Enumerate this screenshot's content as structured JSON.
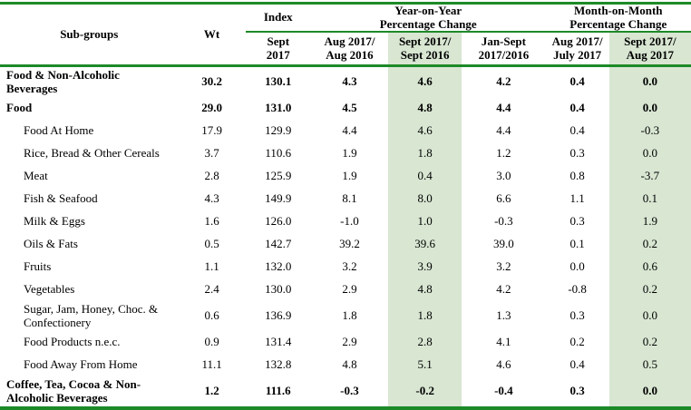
{
  "table": {
    "columns": {
      "subgroups": "Sub-groups",
      "wt": "Wt",
      "index_group": "Index",
      "index_sub": "Sept\n2017",
      "yoy_group": "Year-on-Year\nPercentage Change",
      "yoy_subs": [
        "Aug 2017/\nAug 2016",
        "Sept 2017/\nSept 2016",
        "Jan-Sept\n2017/2016"
      ],
      "mom_group": "Month-on-Month\nPercentage Change",
      "mom_subs": [
        "Aug 2017/\nJuly 2017",
        "Sept 2017/\nAug 2017"
      ]
    },
    "highlight_value_indices": [
      3,
      6
    ],
    "colors": {
      "line_green": "#1d8a28",
      "highlight_green": "#d8e6d2"
    },
    "rows": [
      {
        "label": "Food & Non-Alcoholic\nBeverages",
        "bold": true,
        "indent": false,
        "twoLine": true,
        "values": [
          "30.2",
          "130.1",
          "4.3",
          "4.6",
          "4.2",
          "0.4",
          "0.0"
        ]
      },
      {
        "label": "Food",
        "bold": true,
        "indent": false,
        "twoLine": false,
        "values": [
          "29.0",
          "131.0",
          "4.5",
          "4.8",
          "4.4",
          "0.4",
          "0.0"
        ]
      },
      {
        "label": "Food At Home",
        "bold": false,
        "indent": true,
        "twoLine": false,
        "values": [
          "17.9",
          "129.9",
          "4.4",
          "4.6",
          "4.4",
          "0.4",
          "-0.3"
        ]
      },
      {
        "label": "Rice, Bread & Other Cereals",
        "bold": false,
        "indent": true,
        "twoLine": false,
        "values": [
          "3.7",
          "110.6",
          "1.9",
          "1.8",
          "1.2",
          "0.3",
          "0.0"
        ]
      },
      {
        "label": "Meat",
        "bold": false,
        "indent": true,
        "twoLine": false,
        "values": [
          "2.8",
          "125.9",
          "1.9",
          "0.4",
          "3.0",
          "0.8",
          "-3.7"
        ]
      },
      {
        "label": "Fish & Seafood",
        "bold": false,
        "indent": true,
        "twoLine": false,
        "values": [
          "4.3",
          "149.9",
          "8.1",
          "8.0",
          "6.6",
          "1.1",
          "0.1"
        ]
      },
      {
        "label": "Milk & Eggs",
        "bold": false,
        "indent": true,
        "twoLine": false,
        "values": [
          "1.6",
          "126.0",
          "-1.0",
          "1.0",
          "-0.3",
          "0.3",
          "1.9"
        ]
      },
      {
        "label": "Oils & Fats",
        "bold": false,
        "indent": true,
        "twoLine": false,
        "values": [
          "0.5",
          "142.7",
          "39.2",
          "39.6",
          "39.0",
          "0.1",
          "0.2"
        ]
      },
      {
        "label": "Fruits",
        "bold": false,
        "indent": true,
        "twoLine": false,
        "values": [
          "1.1",
          "132.0",
          "3.2",
          "3.9",
          "3.2",
          "0.0",
          "0.6"
        ]
      },
      {
        "label": "Vegetables",
        "bold": false,
        "indent": true,
        "twoLine": false,
        "values": [
          "2.4",
          "130.0",
          "2.9",
          "4.8",
          "4.2",
          "-0.8",
          "0.2"
        ]
      },
      {
        "label": "Sugar, Jam, Honey, Choc. &\nConfectionery",
        "bold": false,
        "indent": true,
        "twoLine": true,
        "values": [
          "0.6",
          "136.9",
          "1.8",
          "1.8",
          "1.3",
          "0.3",
          "0.0"
        ]
      },
      {
        "label": "Food Products n.e.c.",
        "bold": false,
        "indent": true,
        "twoLine": false,
        "values": [
          "0.9",
          "131.4",
          "2.9",
          "2.8",
          "4.1",
          "0.2",
          "0.2"
        ]
      },
      {
        "label": "Food Away From Home",
        "bold": false,
        "indent": true,
        "twoLine": false,
        "values": [
          "11.1",
          "132.8",
          "4.8",
          "5.1",
          "4.6",
          "0.4",
          "0.5"
        ]
      },
      {
        "label": "Coffee, Tea, Cocoa & Non-\nAlcoholic Beverages",
        "bold": true,
        "indent": false,
        "twoLine": true,
        "values": [
          "1.2",
          "111.6",
          "-0.3",
          "-0.2",
          "-0.4",
          "0.3",
          "0.0"
        ]
      }
    ]
  }
}
